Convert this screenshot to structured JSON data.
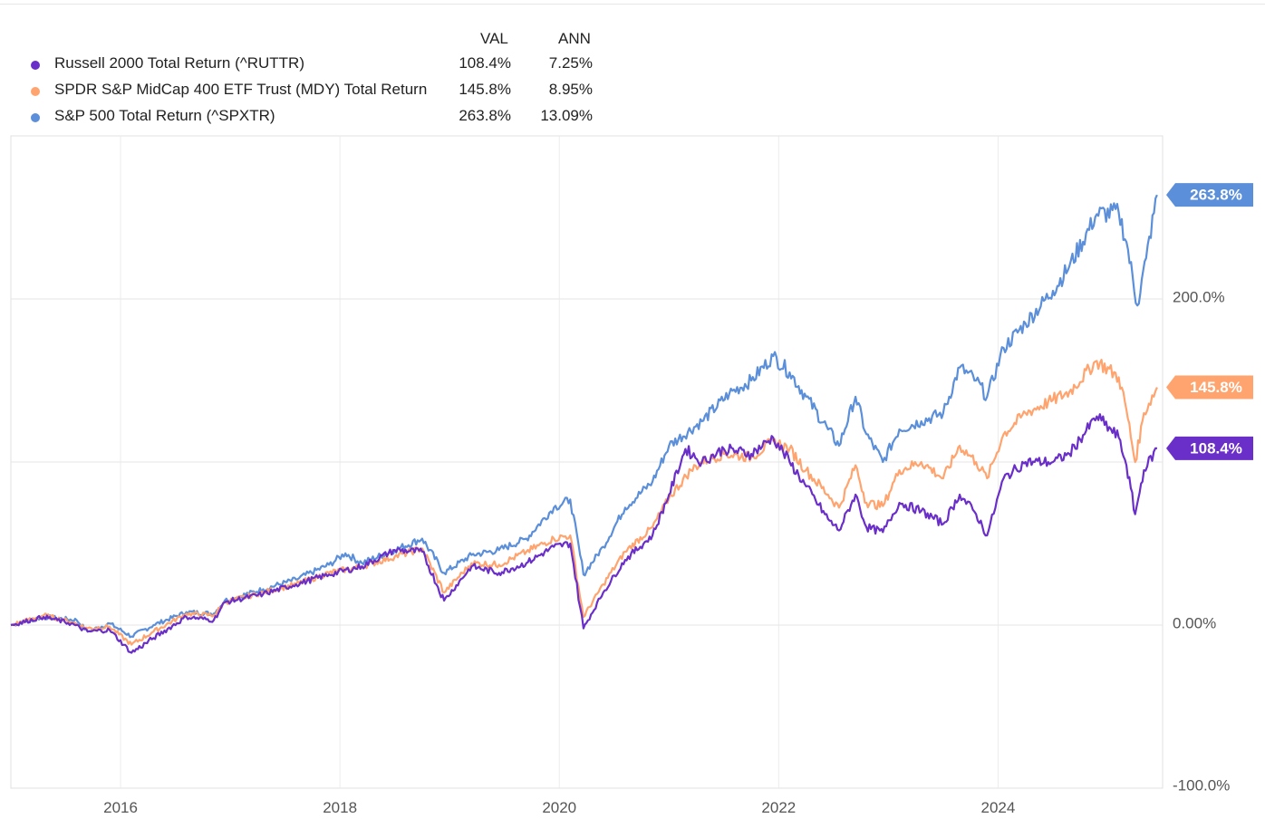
{
  "legend": {
    "col_val": "VAL",
    "col_ann": "ANN",
    "rows": [
      {
        "name": "Russell 2000 Total Return (^RUTTR)",
        "val": "108.4%",
        "ann": "7.25%",
        "color": "#6a2ec9"
      },
      {
        "name": "SPDR S&P MidCap 400 ETF Trust (MDY) Total Return",
        "val": "145.8%",
        "ann": "8.95%",
        "color": "#ffa46e"
      },
      {
        "name": "S&P 500 Total Return (^SPXTR)",
        "val": "263.8%",
        "ann": "13.09%",
        "color": "#5b8fd9"
      }
    ]
  },
  "chart_data": {
    "type": "line",
    "x_unit": "year",
    "xlim": [
      2015.0,
      2025.5
    ],
    "ylim": [
      -100,
      300
    ],
    "y_ticks": [
      {
        "value": 200,
        "label": "200.0%"
      },
      {
        "value": 0,
        "label": "0.00%"
      },
      {
        "value": -100,
        "label": "-100.0%"
      }
    ],
    "y_gridlines": [
      200,
      100,
      0
    ],
    "x_ticks": [
      {
        "value": 2016,
        "label": "2016"
      },
      {
        "value": 2018,
        "label": "2018"
      },
      {
        "value": 2020,
        "label": "2020"
      },
      {
        "value": 2022,
        "label": "2022"
      },
      {
        "value": 2024,
        "label": "2024"
      }
    ],
    "end_labels": [
      "263.8%",
      "145.8%",
      "108.4%"
    ],
    "series": [
      {
        "name": "S&P 500 Total Return (^SPXTR)",
        "color": "#5b8fd9",
        "points": [
          [
            2015.0,
            0
          ],
          [
            2015.3,
            5
          ],
          [
            2015.6,
            3
          ],
          [
            2015.7,
            -4
          ],
          [
            2015.9,
            1
          ],
          [
            2016.1,
            -7
          ],
          [
            2016.3,
            0
          ],
          [
            2016.6,
            8
          ],
          [
            2016.85,
            7
          ],
          [
            2016.95,
            15
          ],
          [
            2017.3,
            22
          ],
          [
            2017.6,
            28
          ],
          [
            2017.9,
            37
          ],
          [
            2018.05,
            44
          ],
          [
            2018.2,
            38
          ],
          [
            2018.5,
            46
          ],
          [
            2018.75,
            53
          ],
          [
            2018.95,
            32
          ],
          [
            2019.2,
            43
          ],
          [
            2019.45,
            46
          ],
          [
            2019.7,
            53
          ],
          [
            2019.95,
            72
          ],
          [
            2020.1,
            77
          ],
          [
            2020.22,
            31
          ],
          [
            2020.4,
            48
          ],
          [
            2020.6,
            72
          ],
          [
            2020.85,
            88
          ],
          [
            2021.0,
            110
          ],
          [
            2021.3,
            125
          ],
          [
            2021.55,
            142
          ],
          [
            2021.75,
            150
          ],
          [
            2021.95,
            165
          ],
          [
            2022.1,
            155
          ],
          [
            2022.25,
            140
          ],
          [
            2022.45,
            120
          ],
          [
            2022.55,
            110
          ],
          [
            2022.7,
            140
          ],
          [
            2022.8,
            117
          ],
          [
            2022.95,
            100
          ],
          [
            2023.1,
            120
          ],
          [
            2023.3,
            125
          ],
          [
            2023.5,
            130
          ],
          [
            2023.65,
            158
          ],
          [
            2023.8,
            150
          ],
          [
            2023.9,
            140
          ],
          [
            2024.05,
            170
          ],
          [
            2024.25,
            185
          ],
          [
            2024.5,
            205
          ],
          [
            2024.65,
            220
          ],
          [
            2024.9,
            252
          ],
          [
            2025.1,
            253
          ],
          [
            2025.17,
            235
          ],
          [
            2025.27,
            196
          ],
          [
            2025.35,
            225
          ],
          [
            2025.45,
            263.8
          ]
        ]
      },
      {
        "name": "SPDR S&P MidCap 400 ETF Trust (MDY) Total Return",
        "color": "#ffa46e",
        "points": [
          [
            2015.0,
            0
          ],
          [
            2015.3,
            6
          ],
          [
            2015.55,
            2
          ],
          [
            2015.7,
            -2
          ],
          [
            2015.9,
            -1
          ],
          [
            2016.1,
            -12
          ],
          [
            2016.3,
            -4
          ],
          [
            2016.6,
            7
          ],
          [
            2016.85,
            6
          ],
          [
            2016.95,
            14
          ],
          [
            2017.3,
            20
          ],
          [
            2017.6,
            25
          ],
          [
            2017.9,
            32
          ],
          [
            2018.2,
            36
          ],
          [
            2018.5,
            42
          ],
          [
            2018.75,
            47
          ],
          [
            2018.95,
            20
          ],
          [
            2019.2,
            38
          ],
          [
            2019.45,
            37
          ],
          [
            2019.7,
            45
          ],
          [
            2019.95,
            53
          ],
          [
            2020.1,
            55
          ],
          [
            2020.22,
            5
          ],
          [
            2020.4,
            25
          ],
          [
            2020.6,
            45
          ],
          [
            2020.85,
            60
          ],
          [
            2021.0,
            78
          ],
          [
            2021.2,
            95
          ],
          [
            2021.3,
            100
          ],
          [
            2021.5,
            105
          ],
          [
            2021.75,
            103
          ],
          [
            2021.95,
            113
          ],
          [
            2022.1,
            108
          ],
          [
            2022.25,
            95
          ],
          [
            2022.45,
            80
          ],
          [
            2022.55,
            72
          ],
          [
            2022.7,
            98
          ],
          [
            2022.8,
            75
          ],
          [
            2022.95,
            73
          ],
          [
            2023.1,
            95
          ],
          [
            2023.3,
            100
          ],
          [
            2023.5,
            90
          ],
          [
            2023.65,
            110
          ],
          [
            2023.8,
            100
          ],
          [
            2023.9,
            90
          ],
          [
            2024.05,
            117
          ],
          [
            2024.25,
            130
          ],
          [
            2024.5,
            138
          ],
          [
            2024.65,
            143
          ],
          [
            2024.9,
            162
          ],
          [
            2025.1,
            152
          ],
          [
            2025.17,
            132
          ],
          [
            2025.25,
            100
          ],
          [
            2025.33,
            130
          ],
          [
            2025.45,
            145.8
          ]
        ]
      },
      {
        "name": "Russell 2000 Total Return (^RUTTR)",
        "color": "#6a2ec9",
        "points": [
          [
            2015.0,
            0
          ],
          [
            2015.3,
            5
          ],
          [
            2015.55,
            1
          ],
          [
            2015.7,
            -4
          ],
          [
            2015.9,
            -3
          ],
          [
            2016.1,
            -17
          ],
          [
            2016.3,
            -8
          ],
          [
            2016.6,
            5
          ],
          [
            2016.85,
            3
          ],
          [
            2016.95,
            14
          ],
          [
            2017.3,
            19
          ],
          [
            2017.6,
            25
          ],
          [
            2017.9,
            31
          ],
          [
            2018.2,
            36
          ],
          [
            2018.5,
            46
          ],
          [
            2018.75,
            45
          ],
          [
            2018.95,
            15
          ],
          [
            2019.2,
            36
          ],
          [
            2019.45,
            32
          ],
          [
            2019.7,
            38
          ],
          [
            2019.95,
            48
          ],
          [
            2020.1,
            50
          ],
          [
            2020.22,
            -2
          ],
          [
            2020.4,
            20
          ],
          [
            2020.6,
            40
          ],
          [
            2020.85,
            55
          ],
          [
            2021.0,
            80
          ],
          [
            2021.15,
            108
          ],
          [
            2021.3,
            100
          ],
          [
            2021.5,
            108
          ],
          [
            2021.75,
            105
          ],
          [
            2021.95,
            115
          ],
          [
            2022.1,
            100
          ],
          [
            2022.25,
            85
          ],
          [
            2022.45,
            65
          ],
          [
            2022.55,
            58
          ],
          [
            2022.7,
            80
          ],
          [
            2022.8,
            60
          ],
          [
            2022.95,
            57
          ],
          [
            2023.1,
            75
          ],
          [
            2023.3,
            70
          ],
          [
            2023.5,
            62
          ],
          [
            2023.65,
            80
          ],
          [
            2023.8,
            68
          ],
          [
            2023.9,
            55
          ],
          [
            2024.05,
            90
          ],
          [
            2024.25,
            100
          ],
          [
            2024.5,
            100
          ],
          [
            2024.65,
            105
          ],
          [
            2024.9,
            128
          ],
          [
            2025.1,
            115
          ],
          [
            2025.17,
            98
          ],
          [
            2025.25,
            68
          ],
          [
            2025.33,
            95
          ],
          [
            2025.45,
            108.4
          ]
        ]
      }
    ]
  }
}
